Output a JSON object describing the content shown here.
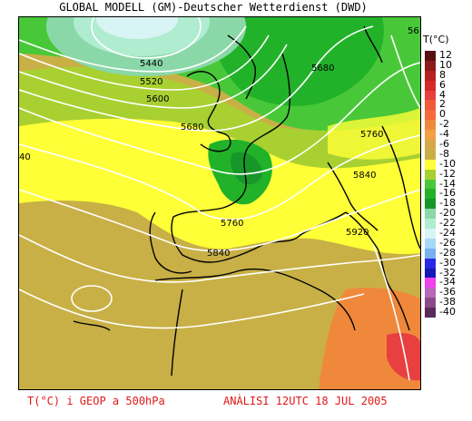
{
  "title": "GLOBAL MODELL (GM)-Deutscher Wetterdienst (DWD)",
  "legend": {
    "title": "T(°C)",
    "entries": [
      {
        "label": "12",
        "color": "#5a1010"
      },
      {
        "label": "10",
        "color": "#8b1a1a"
      },
      {
        "label": "8",
        "color": "#b82020"
      },
      {
        "label": "6",
        "color": "#d82828"
      },
      {
        "label": "4",
        "color": "#e84040"
      },
      {
        "label": "2",
        "color": "#f05a3a"
      },
      {
        "label": "0",
        "color": "#f46a3a"
      },
      {
        "label": "-2",
        "color": "#f0883c"
      },
      {
        "label": "-4",
        "color": "#f2a044"
      },
      {
        "label": "-6",
        "color": "#d4a848"
      },
      {
        "label": "-8",
        "color": "#c8b046"
      },
      {
        "label": "-10",
        "color": "#ffff38"
      },
      {
        "label": "-12",
        "color": "#a8d030"
      },
      {
        "label": "-14",
        "color": "#48c838"
      },
      {
        "label": "-16",
        "color": "#22b22a"
      },
      {
        "label": "-18",
        "color": "#17962a"
      },
      {
        "label": "-20",
        "color": "#8ad8a8"
      },
      {
        "label": "-22",
        "color": "#b0ecd0"
      },
      {
        "label": "-24",
        "color": "#d8f4f4"
      },
      {
        "label": "-26",
        "color": "#a8d8f8"
      },
      {
        "label": "-28",
        "color": "#7ab0f0"
      },
      {
        "label": "-30",
        "color": "#2828e8"
      },
      {
        "label": "-32",
        "color": "#1818b8"
      },
      {
        "label": "-34",
        "color": "#f040f0"
      },
      {
        "label": "-36",
        "color": "#b868b8"
      },
      {
        "label": "-38",
        "color": "#8a4a8a"
      },
      {
        "label": "-40",
        "color": "#5a2a5a"
      }
    ]
  },
  "contour_labels": [
    {
      "text": "5440"
    },
    {
      "text": "5520"
    },
    {
      "text": "5600"
    },
    {
      "text": "5680"
    },
    {
      "text": "5680"
    },
    {
      "text": "5760"
    },
    {
      "text": "5760"
    },
    {
      "text": "5840"
    },
    {
      "text": "5840"
    },
    {
      "text": "5920"
    },
    {
      "text": "56"
    },
    {
      "text": "40"
    }
  ],
  "footer": {
    "left": "T(°C) i GEOP a 500hPa",
    "right": "ANÀLISI 12UTC 18 JUL 2005"
  }
}
